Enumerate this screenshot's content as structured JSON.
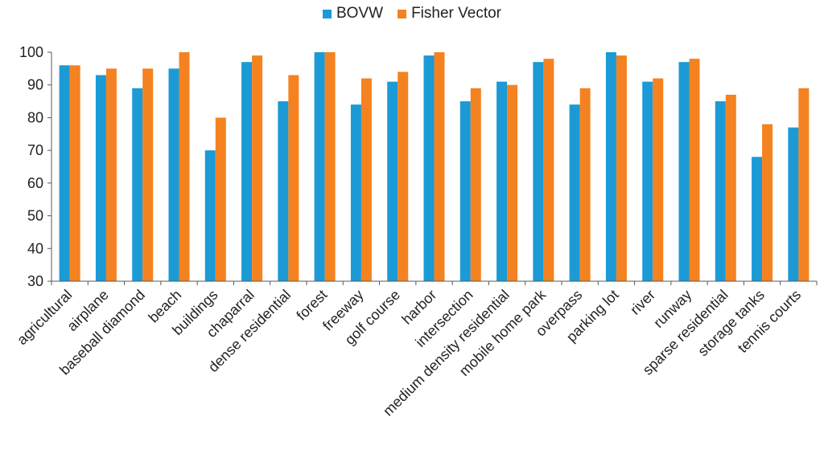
{
  "colors": {
    "bovw": "#1B9AD6",
    "fisher": "#F58220",
    "axis": "#595959",
    "text": "#222222"
  },
  "chart_data": {
    "type": "bar",
    "title": "",
    "xlabel": "",
    "ylabel": "",
    "ylim": [
      30,
      100
    ],
    "yticks": [
      30,
      40,
      50,
      60,
      70,
      80,
      90,
      100
    ],
    "grid": false,
    "legend_position": "top-center",
    "categories": [
      "agricultural",
      "airplane",
      "baseball diamond",
      "beach",
      "buildings",
      "chaparral",
      "dense residential",
      "forest",
      "freeway",
      "golf course",
      "harbor",
      "intersection",
      "medium density residential",
      "mobile home park",
      "overpass",
      "parking lot",
      "river",
      "runway",
      "sparse residential",
      "storage tanks",
      "tennis courts"
    ],
    "series": [
      {
        "name": "BOVW",
        "color": "#1B9AD6",
        "values": [
          96,
          93,
          89,
          95,
          70,
          97,
          85,
          100,
          84,
          91,
          99,
          85,
          91,
          97,
          84,
          100,
          91,
          97,
          85,
          68,
          77
        ]
      },
      {
        "name": "Fisher Vector",
        "color": "#F58220",
        "values": [
          96,
          95,
          95,
          100,
          80,
          99,
          93,
          100,
          92,
          94,
          100,
          89,
          90,
          98,
          89,
          99,
          92,
          98,
          87,
          78,
          89
        ]
      }
    ]
  }
}
